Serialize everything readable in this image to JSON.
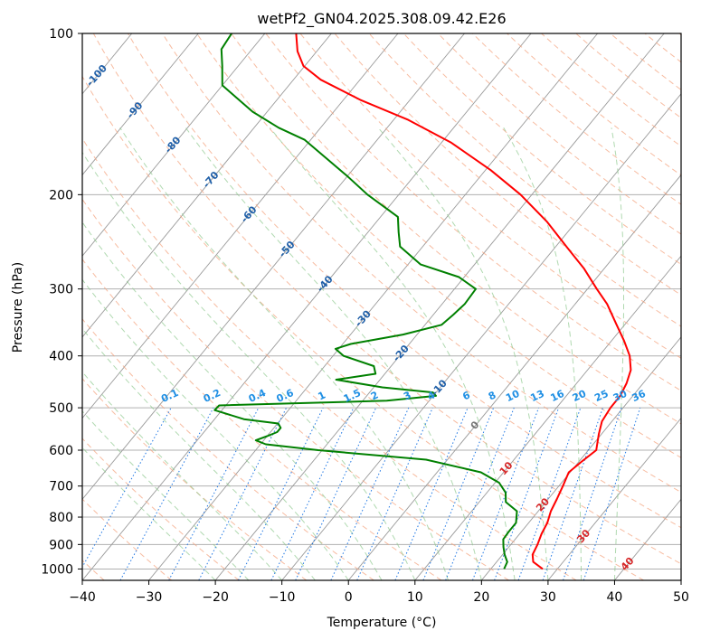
{
  "chart_data": {
    "type": "line",
    "subtype": "skew-t log-p diagram",
    "title": "wetPf2_GN04.2025.308.09.42.E26",
    "xlabel": "Temperature (°C)",
    "ylabel": "Pressure (hPa)",
    "xlim": [
      -40,
      50
    ],
    "ylim": [
      1050,
      100
    ],
    "x_ticks": [
      "−40",
      "−30",
      "−20",
      "−10",
      "0",
      "10",
      "20",
      "30",
      "40",
      "50"
    ],
    "y_ticks": [
      "100",
      "200",
      "300",
      "400",
      "500",
      "600",
      "700",
      "800",
      "900",
      "1000"
    ],
    "y_tick_values": [
      100,
      200,
      300,
      400,
      500,
      600,
      700,
      800,
      900,
      1000
    ],
    "isotherm_labels": [
      "-100",
      "-90",
      "-80",
      "-70",
      "-60",
      "-50",
      "-40",
      "-30",
      "-20",
      "-10",
      "0",
      "10",
      "20",
      "30",
      "40"
    ],
    "isotherm_label_values": [
      -100,
      -90,
      -80,
      -70,
      -60,
      -50,
      -40,
      -30,
      -20,
      -10,
      0,
      10,
      20,
      30,
      40
    ],
    "mixing_ratio_labels": [
      "0.1",
      "0.2",
      "0.4",
      "0.6",
      "1",
      "1.5",
      "2",
      "3",
      "4",
      "6",
      "8",
      "10",
      "13",
      "16",
      "20",
      "25",
      "30",
      "36"
    ],
    "series": [
      {
        "name": "Temperature",
        "color": "#ff0000",
        "points": [
          {
            "T": 27.8,
            "p": 1000
          },
          {
            "T": 25.5,
            "p": 970
          },
          {
            "T": 24.5,
            "p": 940
          },
          {
            "T": 24.0,
            "p": 900
          },
          {
            "T": 23.3,
            "p": 860
          },
          {
            "T": 22.8,
            "p": 820
          },
          {
            "T": 21.9,
            "p": 780
          },
          {
            "T": 21.3,
            "p": 740
          },
          {
            "T": 20.6,
            "p": 700
          },
          {
            "T": 19.8,
            "p": 660
          },
          {
            "T": 20.4,
            "p": 630
          },
          {
            "T": 21.2,
            "p": 600
          },
          {
            "T": 19.6,
            "p": 560
          },
          {
            "T": 18.5,
            "p": 530
          },
          {
            "T": 18.1,
            "p": 500
          },
          {
            "T": 18.1,
            "p": 475
          },
          {
            "T": 17.5,
            "p": 450
          },
          {
            "T": 16.5,
            "p": 425
          },
          {
            "T": 14.6,
            "p": 400
          },
          {
            "T": 11.9,
            "p": 375
          },
          {
            "T": 8.8,
            "p": 350
          },
          {
            "T": 4.8,
            "p": 320
          },
          {
            "T": 1.4,
            "p": 300
          },
          {
            "T": -3.0,
            "p": 275
          },
          {
            "T": -8.4,
            "p": 250
          },
          {
            "T": -14.3,
            "p": 225
          },
          {
            "T": -21.7,
            "p": 200
          },
          {
            "T": -29.2,
            "p": 180
          },
          {
            "T": -38.5,
            "p": 160
          },
          {
            "T": -47.8,
            "p": 145
          },
          {
            "T": -57.5,
            "p": 133
          },
          {
            "T": -65.9,
            "p": 122
          },
          {
            "T": -70.2,
            "p": 115
          },
          {
            "T": -72.9,
            "p": 108
          },
          {
            "T": -75.3,
            "p": 100
          }
        ]
      },
      {
        "name": "Dewpoint",
        "color": "#008000",
        "points": [
          {
            "T": 22.0,
            "p": 1000
          },
          {
            "T": 21.6,
            "p": 970
          },
          {
            "T": 20.3,
            "p": 940
          },
          {
            "T": 19.2,
            "p": 910
          },
          {
            "T": 18.2,
            "p": 880
          },
          {
            "T": 18.1,
            "p": 850
          },
          {
            "T": 18.1,
            "p": 820
          },
          {
            "T": 16.8,
            "p": 780
          },
          {
            "T": 14.0,
            "p": 750
          },
          {
            "T": 12.8,
            "p": 720
          },
          {
            "T": 10.6,
            "p": 690
          },
          {
            "T": 6.6,
            "p": 660
          },
          {
            "T": -3.2,
            "p": 625
          },
          {
            "T": -20.6,
            "p": 600
          },
          {
            "T": -29.2,
            "p": 585
          },
          {
            "T": -31.2,
            "p": 575
          },
          {
            "T": -30.0,
            "p": 565
          },
          {
            "T": -29.0,
            "p": 555
          },
          {
            "T": -29.0,
            "p": 545
          },
          {
            "T": -29.9,
            "p": 535
          },
          {
            "T": -35.6,
            "p": 525
          },
          {
            "T": -41.1,
            "p": 505
          },
          {
            "T": -41.0,
            "p": 495
          },
          {
            "T": -16.4,
            "p": 485
          },
          {
            "T": -9.6,
            "p": 475
          },
          {
            "T": -10.5,
            "p": 468
          },
          {
            "T": -18.7,
            "p": 458
          },
          {
            "T": -26.6,
            "p": 443
          },
          {
            "T": -21.4,
            "p": 432
          },
          {
            "T": -22.6,
            "p": 418
          },
          {
            "T": -28.4,
            "p": 400
          },
          {
            "T": -30.5,
            "p": 388
          },
          {
            "T": -28.8,
            "p": 380
          },
          {
            "T": -22.1,
            "p": 365
          },
          {
            "T": -17.5,
            "p": 350
          },
          {
            "T": -17.0,
            "p": 335
          },
          {
            "T": -16.6,
            "p": 320
          },
          {
            "T": -16.8,
            "p": 300
          },
          {
            "T": -20.8,
            "p": 285
          },
          {
            "T": -28.1,
            "p": 270
          },
          {
            "T": -33.4,
            "p": 250
          },
          {
            "T": -35.4,
            "p": 235
          },
          {
            "T": -37.4,
            "p": 220
          },
          {
            "T": -44.7,
            "p": 200
          },
          {
            "T": -49.9,
            "p": 185
          },
          {
            "T": -55.8,
            "p": 170
          },
          {
            "T": -60.9,
            "p": 158
          },
          {
            "T": -66.3,
            "p": 150
          },
          {
            "T": -72.2,
            "p": 140
          },
          {
            "T": -80.0,
            "p": 125
          },
          {
            "T": -82.4,
            "p": 115
          },
          {
            "T": -84.6,
            "p": 107
          },
          {
            "T": -85.0,
            "p": 100
          }
        ]
      }
    ]
  }
}
